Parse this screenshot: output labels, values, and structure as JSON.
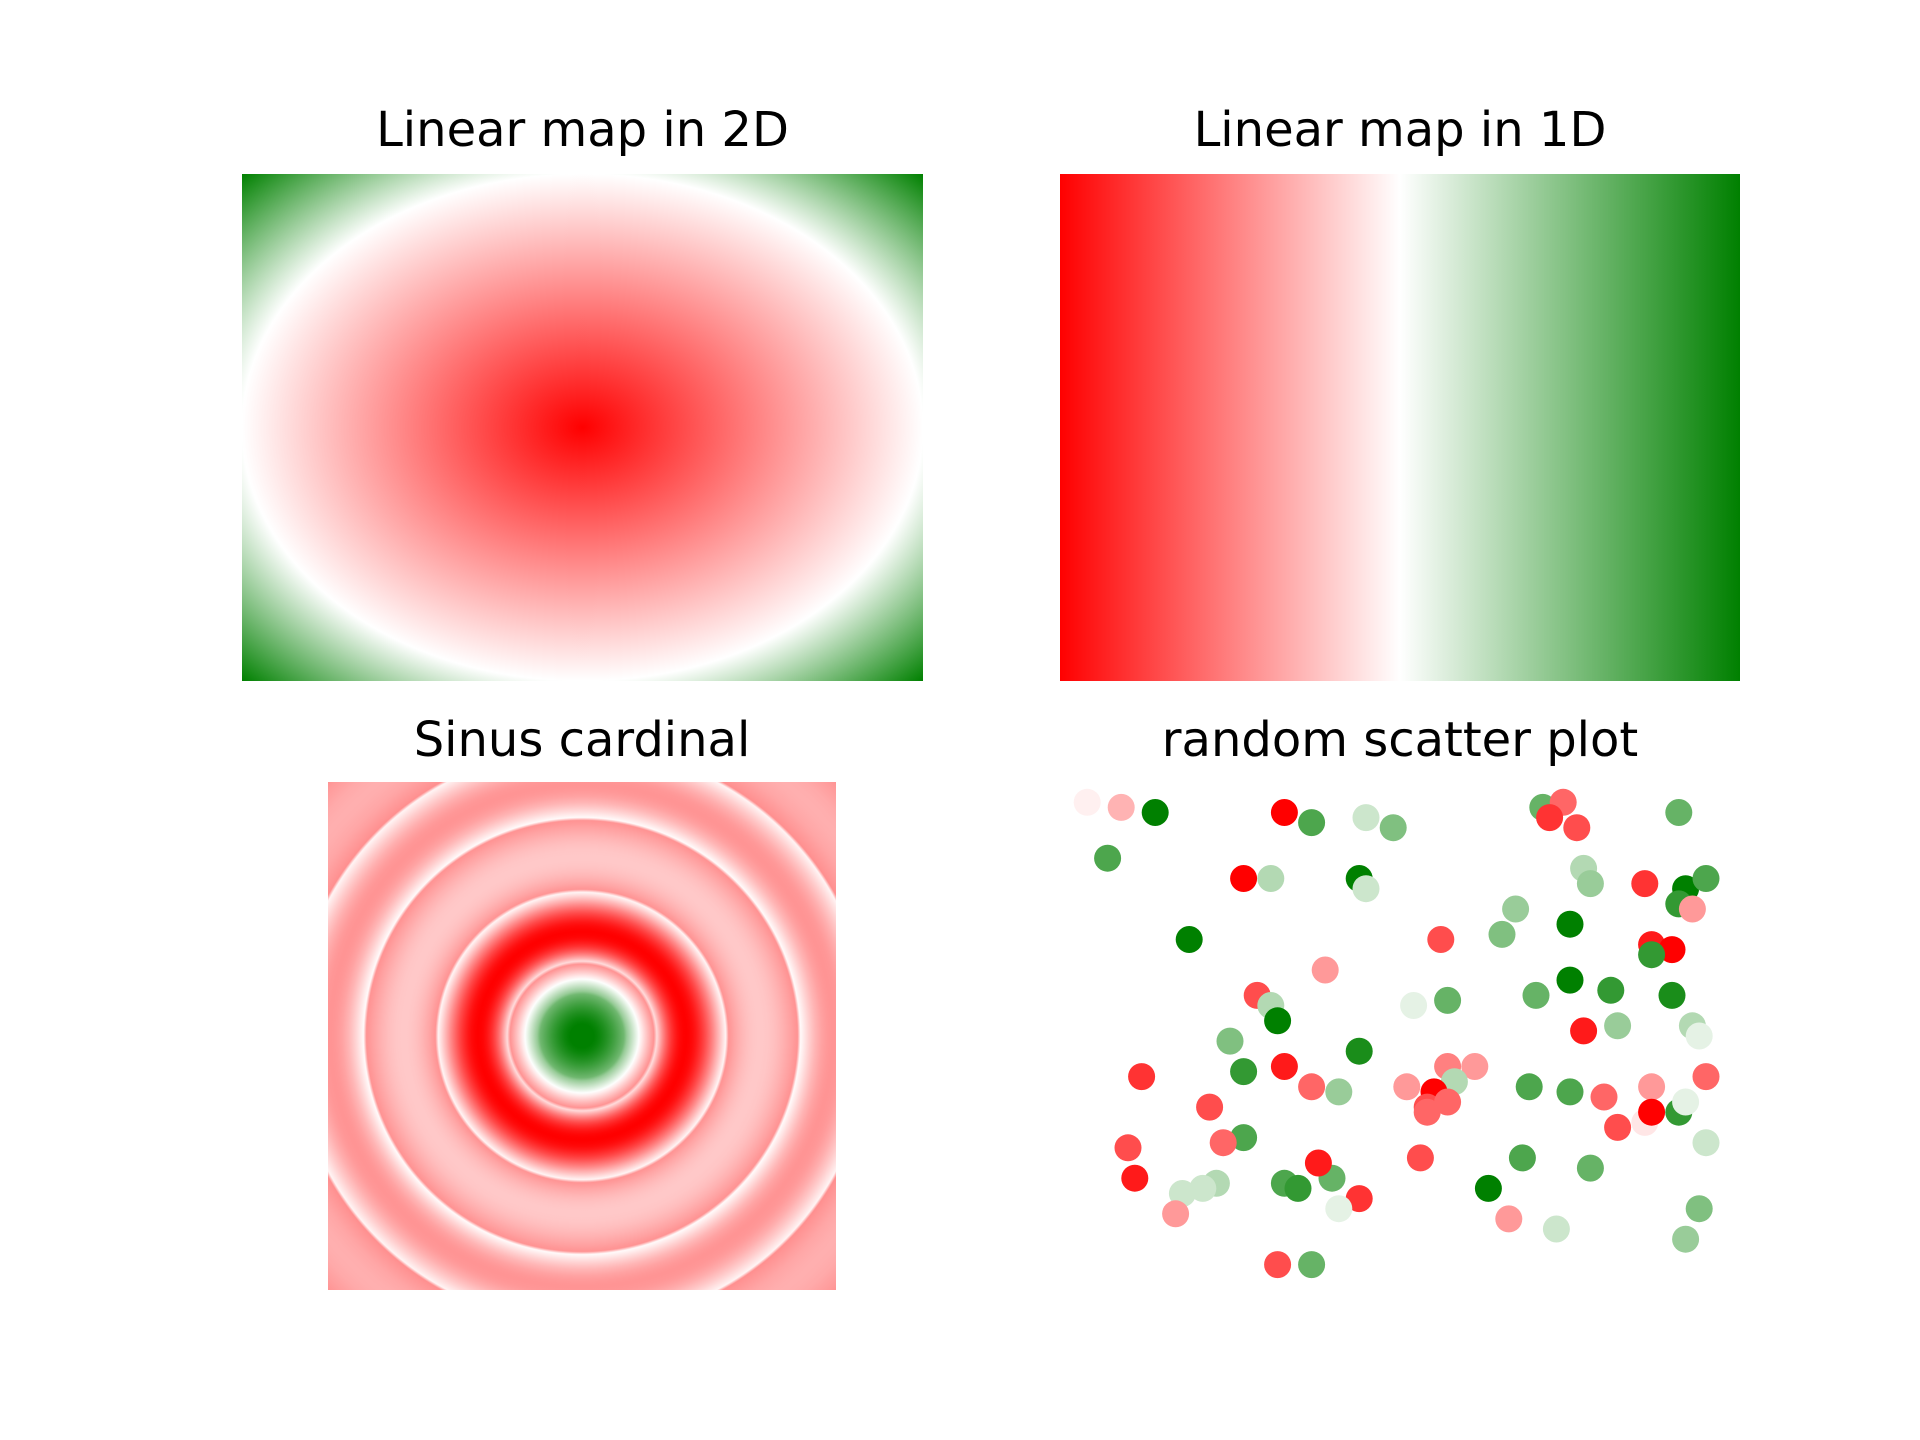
{
  "colors": {
    "low": "#ff0000",
    "mid": "#ffffff",
    "high": "#008000"
  },
  "chart_data": [
    {
      "type": "heatmap",
      "title": "Linear map in 2D",
      "function": "elliptic radial distance from center; red at center, white on ellipse, green in corners",
      "colormap": [
        "#ff0000",
        "#ffffff",
        "#008000"
      ],
      "axes": "off"
    },
    {
      "type": "heatmap",
      "title": "Linear map in 1D",
      "function": "linear gradient left to right",
      "colormap": [
        "#ff0000",
        "#ffffff",
        "#008000"
      ],
      "axes": "off"
    },
    {
      "type": "heatmap",
      "title": "Sinus cardinal",
      "function": "sinc of radial distance; green center, red-to-white concentric rings",
      "colormap": [
        "#ff0000",
        "#ffffff",
        "#008000"
      ],
      "axes": "off"
    },
    {
      "type": "scatter",
      "title": "random scatter plot",
      "axes": "off",
      "xlim": [
        0,
        1
      ],
      "ylim": [
        0,
        1
      ],
      "points": [
        {
          "x": 0.04,
          "y": 0.96,
          "c": 0.47
        },
        {
          "x": 0.09,
          "y": 0.95,
          "c": 0.35
        },
        {
          "x": 0.14,
          "y": 0.94,
          "c": 1.0
        },
        {
          "x": 0.33,
          "y": 0.94,
          "c": 0.0
        },
        {
          "x": 0.37,
          "y": 0.92,
          "c": 0.85
        },
        {
          "x": 0.45,
          "y": 0.93,
          "c": 0.6
        },
        {
          "x": 0.49,
          "y": 0.91,
          "c": 0.75
        },
        {
          "x": 0.71,
          "y": 0.95,
          "c": 0.8
        },
        {
          "x": 0.74,
          "y": 0.96,
          "c": 0.2
        },
        {
          "x": 0.72,
          "y": 0.93,
          "c": 0.1
        },
        {
          "x": 0.76,
          "y": 0.91,
          "c": 0.15
        },
        {
          "x": 0.91,
          "y": 0.94,
          "c": 0.8
        },
        {
          "x": 0.07,
          "y": 0.85,
          "c": 0.85
        },
        {
          "x": 0.27,
          "y": 0.81,
          "c": 0.0
        },
        {
          "x": 0.31,
          "y": 0.81,
          "c": 0.65
        },
        {
          "x": 0.44,
          "y": 0.81,
          "c": 1.0
        },
        {
          "x": 0.45,
          "y": 0.79,
          "c": 0.6
        },
        {
          "x": 0.77,
          "y": 0.83,
          "c": 0.65
        },
        {
          "x": 0.78,
          "y": 0.8,
          "c": 0.7
        },
        {
          "x": 0.86,
          "y": 0.8,
          "c": 0.1
        },
        {
          "x": 0.92,
          "y": 0.79,
          "c": 1.0
        },
        {
          "x": 0.95,
          "y": 0.81,
          "c": 0.85
        },
        {
          "x": 0.91,
          "y": 0.76,
          "c": 0.9
        },
        {
          "x": 0.93,
          "y": 0.75,
          "c": 0.3
        },
        {
          "x": 0.19,
          "y": 0.69,
          "c": 1.0
        },
        {
          "x": 0.56,
          "y": 0.69,
          "c": 0.15
        },
        {
          "x": 0.67,
          "y": 0.75,
          "c": 0.7
        },
        {
          "x": 0.65,
          "y": 0.7,
          "c": 0.75
        },
        {
          "x": 0.75,
          "y": 0.72,
          "c": 1.0
        },
        {
          "x": 0.87,
          "y": 0.68,
          "c": 0.05
        },
        {
          "x": 0.9,
          "y": 0.67,
          "c": 0.0
        },
        {
          "x": 0.87,
          "y": 0.66,
          "c": 0.9
        },
        {
          "x": 0.39,
          "y": 0.63,
          "c": 0.3
        },
        {
          "x": 0.29,
          "y": 0.58,
          "c": 0.15
        },
        {
          "x": 0.31,
          "y": 0.56,
          "c": 0.65
        },
        {
          "x": 0.32,
          "y": 0.53,
          "c": 1.0
        },
        {
          "x": 0.52,
          "y": 0.56,
          "c": 0.55
        },
        {
          "x": 0.57,
          "y": 0.57,
          "c": 0.8
        },
        {
          "x": 0.7,
          "y": 0.58,
          "c": 0.8
        },
        {
          "x": 0.75,
          "y": 0.61,
          "c": 1.0
        },
        {
          "x": 0.81,
          "y": 0.59,
          "c": 0.9
        },
        {
          "x": 0.9,
          "y": 0.58,
          "c": 0.95
        },
        {
          "x": 0.77,
          "y": 0.51,
          "c": 0.05
        },
        {
          "x": 0.82,
          "y": 0.52,
          "c": 0.7
        },
        {
          "x": 0.93,
          "y": 0.52,
          "c": 0.65
        },
        {
          "x": 0.94,
          "y": 0.5,
          "c": 0.55
        },
        {
          "x": 0.25,
          "y": 0.49,
          "c": 0.75
        },
        {
          "x": 0.44,
          "y": 0.47,
          "c": 0.95
        },
        {
          "x": 0.12,
          "y": 0.42,
          "c": 0.1
        },
        {
          "x": 0.27,
          "y": 0.43,
          "c": 0.9
        },
        {
          "x": 0.33,
          "y": 0.44,
          "c": 0.05
        },
        {
          "x": 0.37,
          "y": 0.4,
          "c": 0.2
        },
        {
          "x": 0.41,
          "y": 0.39,
          "c": 0.7
        },
        {
          "x": 0.51,
          "y": 0.4,
          "c": 0.3
        },
        {
          "x": 0.57,
          "y": 0.44,
          "c": 0.25
        },
        {
          "x": 0.61,
          "y": 0.44,
          "c": 0.3
        },
        {
          "x": 0.58,
          "y": 0.41,
          "c": 0.65
        },
        {
          "x": 0.55,
          "y": 0.39,
          "c": 0.0
        },
        {
          "x": 0.54,
          "y": 0.36,
          "c": 0.15
        },
        {
          "x": 0.57,
          "y": 0.37,
          "c": 0.2
        },
        {
          "x": 0.69,
          "y": 0.4,
          "c": 0.85
        },
        {
          "x": 0.75,
          "y": 0.39,
          "c": 0.85
        },
        {
          "x": 0.8,
          "y": 0.38,
          "c": 0.2
        },
        {
          "x": 0.87,
          "y": 0.4,
          "c": 0.3
        },
        {
          "x": 0.91,
          "y": 0.35,
          "c": 0.9
        },
        {
          "x": 0.95,
          "y": 0.42,
          "c": 0.2
        },
        {
          "x": 0.92,
          "y": 0.37,
          "c": 0.55
        },
        {
          "x": 0.22,
          "y": 0.36,
          "c": 0.15
        },
        {
          "x": 0.27,
          "y": 0.3,
          "c": 0.85
        },
        {
          "x": 0.24,
          "y": 0.29,
          "c": 0.2
        },
        {
          "x": 0.54,
          "y": 0.35,
          "c": 0.2
        },
        {
          "x": 0.82,
          "y": 0.32,
          "c": 0.15
        },
        {
          "x": 0.86,
          "y": 0.33,
          "c": 0.45
        },
        {
          "x": 0.87,
          "y": 0.35,
          "c": 0.0
        },
        {
          "x": 0.95,
          "y": 0.29,
          "c": 0.6
        },
        {
          "x": 0.1,
          "y": 0.28,
          "c": 0.15
        },
        {
          "x": 0.11,
          "y": 0.22,
          "c": 0.05
        },
        {
          "x": 0.18,
          "y": 0.19,
          "c": 0.6
        },
        {
          "x": 0.23,
          "y": 0.21,
          "c": 0.65
        },
        {
          "x": 0.17,
          "y": 0.15,
          "c": 0.3
        },
        {
          "x": 0.33,
          "y": 0.21,
          "c": 0.85
        },
        {
          "x": 0.4,
          "y": 0.22,
          "c": 0.8
        },
        {
          "x": 0.38,
          "y": 0.25,
          "c": 0.05
        },
        {
          "x": 0.44,
          "y": 0.18,
          "c": 0.1
        },
        {
          "x": 0.53,
          "y": 0.26,
          "c": 0.15
        },
        {
          "x": 0.63,
          "y": 0.2,
          "c": 1.0
        },
        {
          "x": 0.68,
          "y": 0.26,
          "c": 0.85
        },
        {
          "x": 0.78,
          "y": 0.24,
          "c": 0.8
        },
        {
          "x": 0.66,
          "y": 0.14,
          "c": 0.3
        },
        {
          "x": 0.73,
          "y": 0.12,
          "c": 0.6
        },
        {
          "x": 0.94,
          "y": 0.16,
          "c": 0.75
        },
        {
          "x": 0.92,
          "y": 0.1,
          "c": 0.7
        },
        {
          "x": 0.41,
          "y": 0.16,
          "c": 0.55
        },
        {
          "x": 0.21,
          "y": 0.2,
          "c": 0.6
        },
        {
          "x": 0.35,
          "y": 0.2,
          "c": 0.9
        },
        {
          "x": 0.32,
          "y": 0.05,
          "c": 0.15
        },
        {
          "x": 0.37,
          "y": 0.05,
          "c": 0.8
        }
      ]
    }
  ]
}
